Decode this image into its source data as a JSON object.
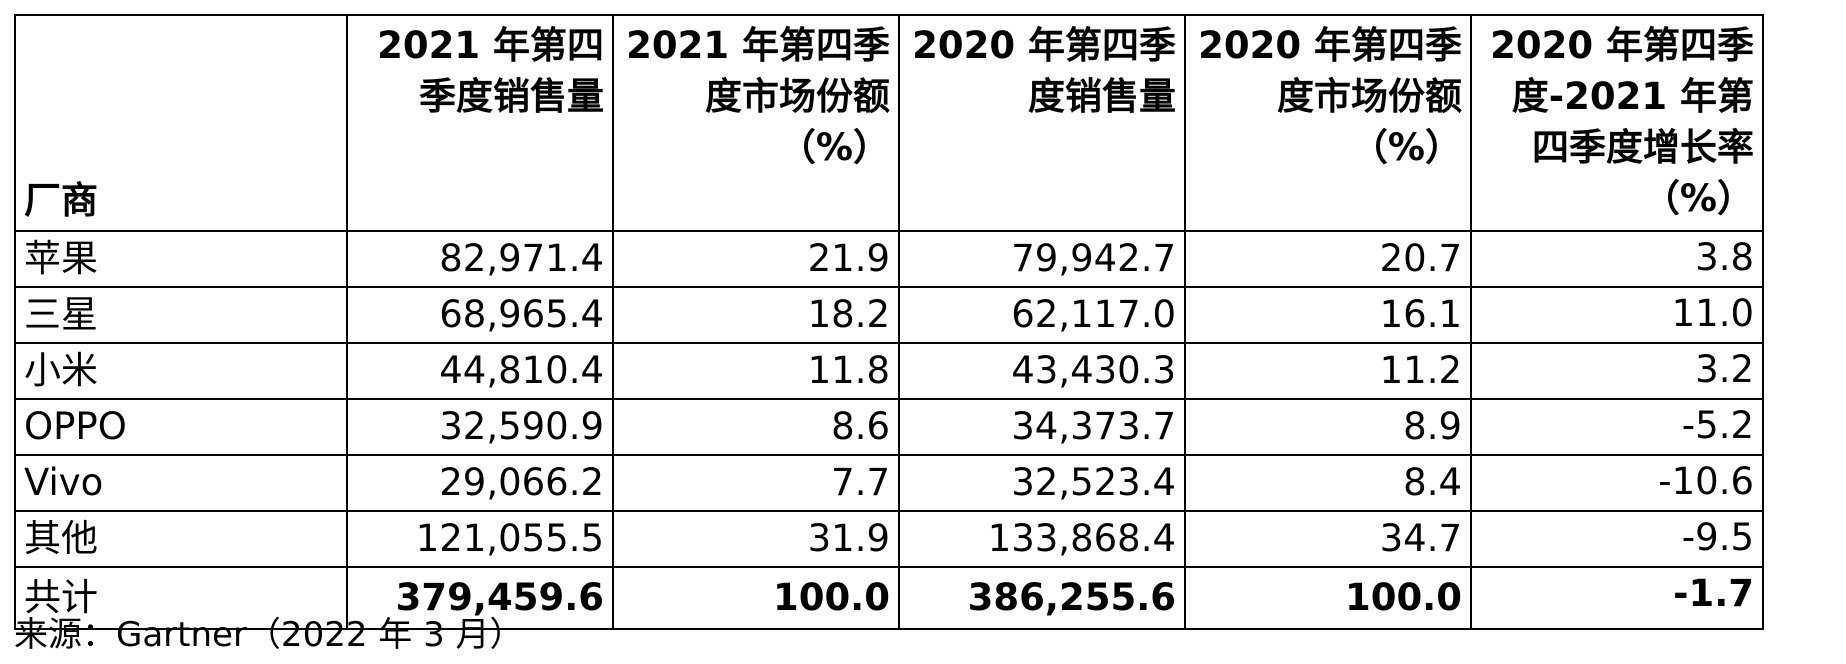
{
  "table": {
    "headers": [
      "厂商",
      "2021 年第四季度销售量",
      "2021 年第四季度市场份额（%）",
      "2020 年第四季度销售量",
      "2020 年第四季度市场份额（%）",
      "2020 年第四季度-2021 年第四季度增长率（%）"
    ],
    "rows": [
      [
        "苹果",
        "82,971.4",
        "21.9",
        "79,942.7",
        "20.7",
        "3.8"
      ],
      [
        "三星",
        "68,965.4",
        "18.2",
        "62,117.0",
        "16.1",
        "11.0"
      ],
      [
        "小米",
        "44,810.4",
        "11.8",
        "43,430.3",
        "11.2",
        "3.2"
      ],
      [
        "OPPO",
        "32,590.9",
        "8.6",
        "34,373.7",
        "8.9",
        "-5.2"
      ],
      [
        "Vivo",
        "29,066.2",
        "7.7",
        "32,523.4",
        "8.4",
        "-10.6"
      ],
      [
        "其他",
        "121,055.5",
        "31.9",
        "133,868.4",
        "34.7",
        "-9.5"
      ],
      [
        "共计",
        "379,459.6",
        "100.0",
        "386,255.6",
        "100.0",
        "-1.7"
      ]
    ]
  },
  "source": "来源：Gartner（2022 年 3 月）"
}
